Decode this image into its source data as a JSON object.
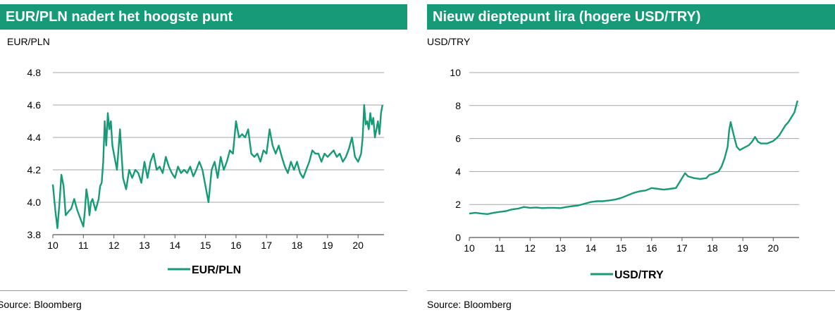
{
  "colors": {
    "accent": "#179a77",
    "grid": "#a6a6a6",
    "axis": "#555555"
  },
  "chart_data": [
    {
      "type": "line",
      "title": "EUR/PLN nadert het hoogste punt",
      "ylabel": "EUR/PLN",
      "xlim": [
        10,
        20.85
      ],
      "ylim": [
        3.8,
        4.8
      ],
      "yticks": [
        3.8,
        4.0,
        4.2,
        4.4,
        4.6,
        4.8
      ],
      "ytick_labels": [
        "3.8",
        "4.0",
        "4.2",
        "4.4",
        "4.6",
        "4.8"
      ],
      "xticks": [
        10,
        11,
        12,
        13,
        14,
        15,
        16,
        17,
        18,
        19,
        20
      ],
      "xtick_labels": [
        "10",
        "11",
        "12",
        "13",
        "14",
        "15",
        "16",
        "17",
        "18",
        "19",
        "20"
      ],
      "legend": [
        "EUR/PLN"
      ],
      "legend_position": "bottom",
      "series": [
        {
          "name": "EUR/PLN",
          "x": [
            10.0,
            10.08,
            10.15,
            10.22,
            10.28,
            10.35,
            10.42,
            10.5,
            10.6,
            10.7,
            10.8,
            10.9,
            11.0,
            11.05,
            11.1,
            11.15,
            11.2,
            11.25,
            11.3,
            11.4,
            11.5,
            11.55,
            11.6,
            11.65,
            11.7,
            11.75,
            11.8,
            11.85,
            11.9,
            11.95,
            12.0,
            12.1,
            12.2,
            12.3,
            12.4,
            12.5,
            12.6,
            12.7,
            12.8,
            12.9,
            13.0,
            13.1,
            13.2,
            13.3,
            13.4,
            13.5,
            13.6,
            13.7,
            13.8,
            13.9,
            14.0,
            14.1,
            14.2,
            14.3,
            14.4,
            14.5,
            14.6,
            14.7,
            14.8,
            14.9,
            15.0,
            15.1,
            15.2,
            15.3,
            15.4,
            15.5,
            15.6,
            15.7,
            15.8,
            15.9,
            16.0,
            16.1,
            16.2,
            16.3,
            16.4,
            16.5,
            16.6,
            16.7,
            16.8,
            16.9,
            17.0,
            17.1,
            17.2,
            17.3,
            17.4,
            17.5,
            17.6,
            17.7,
            17.8,
            17.9,
            18.0,
            18.1,
            18.2,
            18.3,
            18.4,
            18.5,
            18.6,
            18.7,
            18.8,
            18.9,
            19.0,
            19.1,
            19.2,
            19.3,
            19.4,
            19.5,
            19.6,
            19.7,
            19.8,
            19.9,
            20.0,
            20.1,
            20.15,
            20.2,
            20.25,
            20.3,
            20.35,
            20.4,
            20.45,
            20.5,
            20.55,
            20.6,
            20.65,
            20.7,
            20.75,
            20.8
          ],
          "values": [
            4.11,
            3.95,
            3.84,
            4.0,
            4.17,
            4.1,
            3.92,
            3.94,
            3.96,
            4.02,
            3.95,
            3.9,
            3.85,
            3.95,
            4.08,
            4.02,
            3.92,
            4.0,
            4.02,
            3.95,
            4.02,
            4.1,
            4.12,
            4.25,
            4.5,
            4.35,
            4.55,
            4.45,
            4.5,
            4.35,
            4.3,
            4.2,
            4.45,
            4.15,
            4.08,
            4.2,
            4.15,
            4.2,
            4.18,
            4.12,
            4.25,
            4.15,
            4.25,
            4.3,
            4.2,
            4.22,
            4.18,
            4.28,
            4.22,
            4.18,
            4.15,
            4.22,
            4.18,
            4.2,
            4.18,
            4.22,
            4.16,
            4.2,
            4.25,
            4.2,
            4.1,
            4.0,
            4.2,
            4.25,
            4.15,
            4.28,
            4.2,
            4.25,
            4.32,
            4.3,
            4.5,
            4.4,
            4.42,
            4.4,
            4.45,
            4.3,
            4.28,
            4.3,
            4.25,
            4.32,
            4.3,
            4.45,
            4.35,
            4.3,
            4.35,
            4.28,
            4.22,
            4.18,
            4.25,
            4.2,
            4.25,
            4.18,
            4.15,
            4.2,
            4.25,
            4.32,
            4.3,
            4.3,
            4.25,
            4.3,
            4.28,
            4.3,
            4.32,
            4.28,
            4.3,
            4.25,
            4.28,
            4.33,
            4.4,
            4.28,
            4.25,
            4.3,
            4.4,
            4.6,
            4.48,
            4.5,
            4.45,
            4.55,
            4.48,
            4.52,
            4.4,
            4.45,
            4.5,
            4.42,
            4.55,
            4.6
          ]
        }
      ]
    },
    {
      "type": "line",
      "title": "Nieuw dieptepunt lira (hogere USD/TRY)",
      "ylabel": "USD/TRY",
      "xlim": [
        10,
        20.85
      ],
      "ylim": [
        0,
        10
      ],
      "yticks": [
        0,
        2,
        4,
        6,
        8,
        10
      ],
      "ytick_labels": [
        "0",
        "2",
        "4",
        "6",
        "8",
        "10"
      ],
      "xticks": [
        10,
        11,
        12,
        13,
        14,
        15,
        16,
        17,
        18,
        19,
        20
      ],
      "xtick_labels": [
        "10",
        "11",
        "12",
        "13",
        "14",
        "15",
        "16",
        "17",
        "18",
        "19",
        "20"
      ],
      "legend": [
        "USD/TRY"
      ],
      "legend_position": "bottom",
      "series": [
        {
          "name": "USD/TRY",
          "x": [
            10.0,
            10.2,
            10.4,
            10.6,
            10.8,
            11.0,
            11.2,
            11.4,
            11.6,
            11.8,
            12.0,
            12.2,
            12.4,
            12.6,
            12.8,
            13.0,
            13.2,
            13.4,
            13.6,
            13.8,
            14.0,
            14.2,
            14.4,
            14.6,
            14.8,
            15.0,
            15.2,
            15.4,
            15.6,
            15.8,
            16.0,
            16.2,
            16.4,
            16.6,
            16.8,
            16.9,
            17.0,
            17.1,
            17.2,
            17.4,
            17.6,
            17.8,
            17.9,
            18.0,
            18.2,
            18.3,
            18.4,
            18.5,
            18.55,
            18.6,
            18.65,
            18.7,
            18.8,
            18.9,
            19.0,
            19.2,
            19.3,
            19.4,
            19.5,
            19.6,
            19.8,
            20.0,
            20.1,
            20.2,
            20.3,
            20.4,
            20.5,
            20.6,
            20.7,
            20.8
          ],
          "values": [
            1.45,
            1.5,
            1.45,
            1.42,
            1.5,
            1.55,
            1.6,
            1.7,
            1.75,
            1.85,
            1.8,
            1.82,
            1.78,
            1.8,
            1.8,
            1.78,
            1.85,
            1.9,
            1.95,
            2.05,
            2.15,
            2.2,
            2.2,
            2.25,
            2.3,
            2.4,
            2.55,
            2.7,
            2.8,
            2.85,
            3.0,
            2.95,
            2.9,
            2.95,
            3.0,
            3.3,
            3.6,
            3.9,
            3.7,
            3.6,
            3.55,
            3.6,
            3.8,
            3.85,
            4.0,
            4.3,
            4.8,
            5.5,
            6.5,
            7.0,
            6.6,
            6.2,
            5.5,
            5.3,
            5.4,
            5.6,
            5.8,
            6.1,
            5.8,
            5.7,
            5.7,
            5.85,
            6.0,
            6.2,
            6.5,
            6.8,
            7.0,
            7.3,
            7.6,
            8.3
          ]
        }
      ]
    },
    {
      "source_label": "Source: Bloomberg"
    }
  ]
}
